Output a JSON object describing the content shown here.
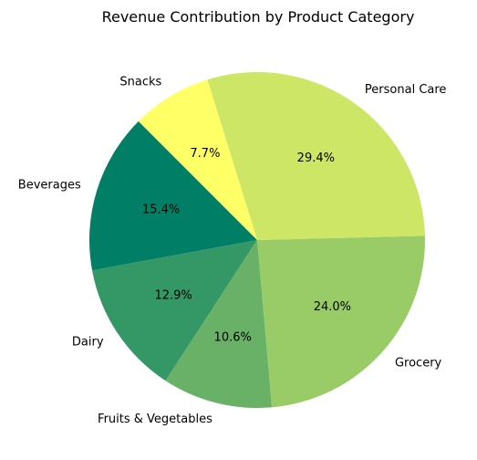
{
  "chart_data": {
    "type": "pie",
    "title": "Revenue Contribution by Product Category",
    "categories": [
      "Beverages",
      "Dairy",
      "Fruits & Vegetables",
      "Grocery",
      "Personal Care",
      "Snacks"
    ],
    "values": [
      15.4,
      12.9,
      10.6,
      24.0,
      29.4,
      7.7
    ],
    "value_labels": [
      "15.4%",
      "12.9%",
      "10.6%",
      "24.0%",
      "29.4%",
      "7.7%"
    ],
    "colors": [
      "#007f66",
      "#339866",
      "#68b166",
      "#99cb66",
      "#cee666",
      "#ffff66"
    ],
    "start_angle_deg": 135,
    "direction": "counterclockwise",
    "legend": "none"
  }
}
